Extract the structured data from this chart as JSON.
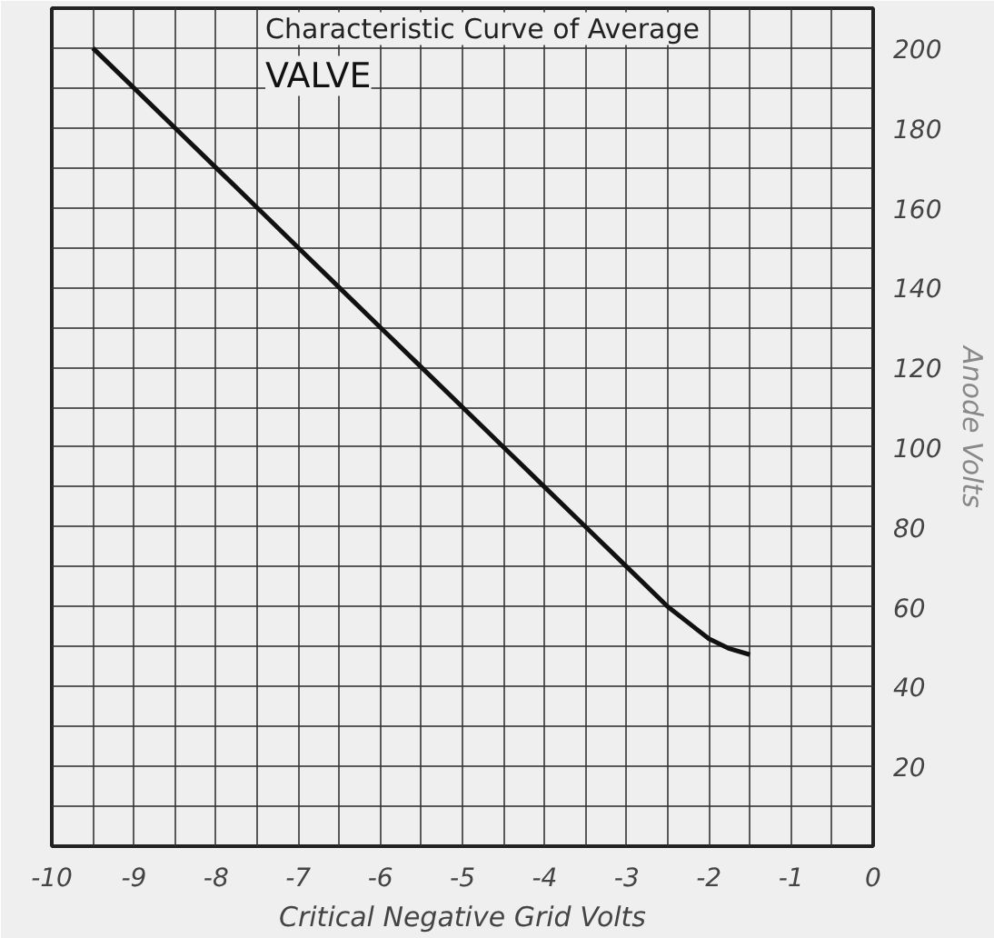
{
  "chart_data": {
    "type": "line",
    "title": "Characteristic Curve of Average",
    "subtitle": "VALVE",
    "xlabel": "Critical Negative Grid Volts",
    "ylabel": "Anode Volts",
    "x": [
      -9.5,
      -8.5,
      -8,
      -7.5,
      -7,
      -6.5,
      -6,
      -5.5,
      -5,
      -4.5,
      -4,
      -3.5,
      -3,
      -2.5,
      -2,
      -1.75,
      -1.5
    ],
    "series": [
      {
        "color": "#111111",
        "values": [
          200,
          180,
          170,
          160,
          150,
          140,
          130,
          120,
          110,
          100,
          90,
          80,
          70,
          60,
          52,
          49.5,
          48
        ]
      }
    ],
    "xlim": [
      -10,
      0
    ],
    "ylim": [
      0,
      210
    ],
    "xticks": [
      -10,
      {
        "value": -9.5,
        "label": null
      },
      -9,
      {
        "value": -8.5,
        "label": null
      },
      -8,
      {
        "value": -7.5,
        "label": null
      },
      -7,
      {
        "value": -6.5,
        "label": null
      },
      -6,
      {
        "value": -5.5,
        "label": null
      },
      -5,
      {
        "value": -4.5,
        "label": null
      },
      -4,
      {
        "value": -3.5,
        "label": null
      },
      -3,
      {
        "value": -2.5,
        "label": null
      },
      -2,
      {
        "value": -1.5,
        "label": null
      },
      -1,
      {
        "value": -0.5,
        "label": null
      },
      0
    ],
    "yticks": [
      {
        "value": 0,
        "label": null
      },
      {
        "value": 10,
        "label": null
      },
      20,
      {
        "value": 30,
        "label": null
      },
      40,
      {
        "value": 50,
        "label": null
      },
      60,
      {
        "value": 70,
        "label": null
      },
      80,
      {
        "value": 90,
        "label": null
      },
      100,
      {
        "value": 110,
        "label": null
      },
      120,
      {
        "value": 130,
        "label": null
      },
      140,
      {
        "value": 150,
        "label": null
      },
      160,
      {
        "value": 170,
        "label": null
      },
      180,
      {
        "value": 190,
        "label": null
      },
      200
    ],
    "grid": true,
    "marker": "none",
    "line_style": "solid"
  }
}
